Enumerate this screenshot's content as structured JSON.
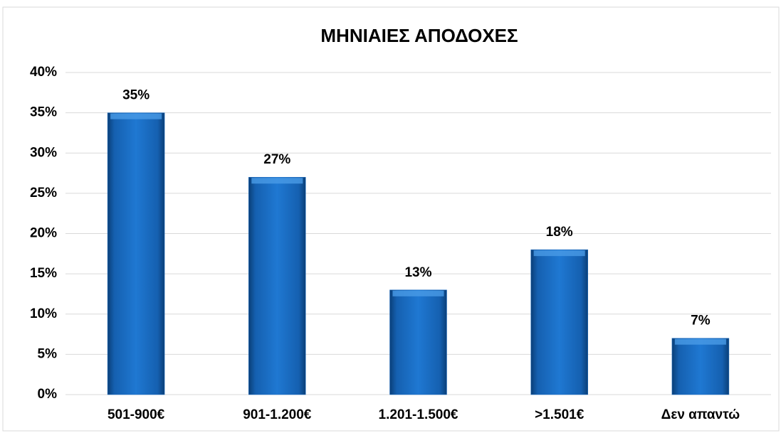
{
  "chart_data": {
    "type": "bar",
    "title": "ΜΗΝΙΑΙΕΣ ΑΠΟΔΟΧΕΣ",
    "categories": [
      "501-900€",
      "901-1.200€",
      "1.201-1.500€",
      ">1.501€",
      "Δεν απαντώ"
    ],
    "values": [
      35,
      27,
      13,
      18,
      7
    ],
    "value_labels": [
      "35%",
      "27%",
      "13%",
      "18%",
      "7%"
    ],
    "color": "#1f6fc4",
    "ylim": [
      0,
      40
    ],
    "yticks": [
      {
        "value": 0,
        "label": "0%"
      },
      {
        "value": 5,
        "label": "5%"
      },
      {
        "value": 10,
        "label": "10%"
      },
      {
        "value": 15,
        "label": "15%"
      },
      {
        "value": 20,
        "label": "20%"
      },
      {
        "value": 25,
        "label": "25%"
      },
      {
        "value": 30,
        "label": "30%"
      },
      {
        "value": 35,
        "label": "35%"
      },
      {
        "value": 40,
        "label": "40%"
      }
    ],
    "grid": true
  }
}
